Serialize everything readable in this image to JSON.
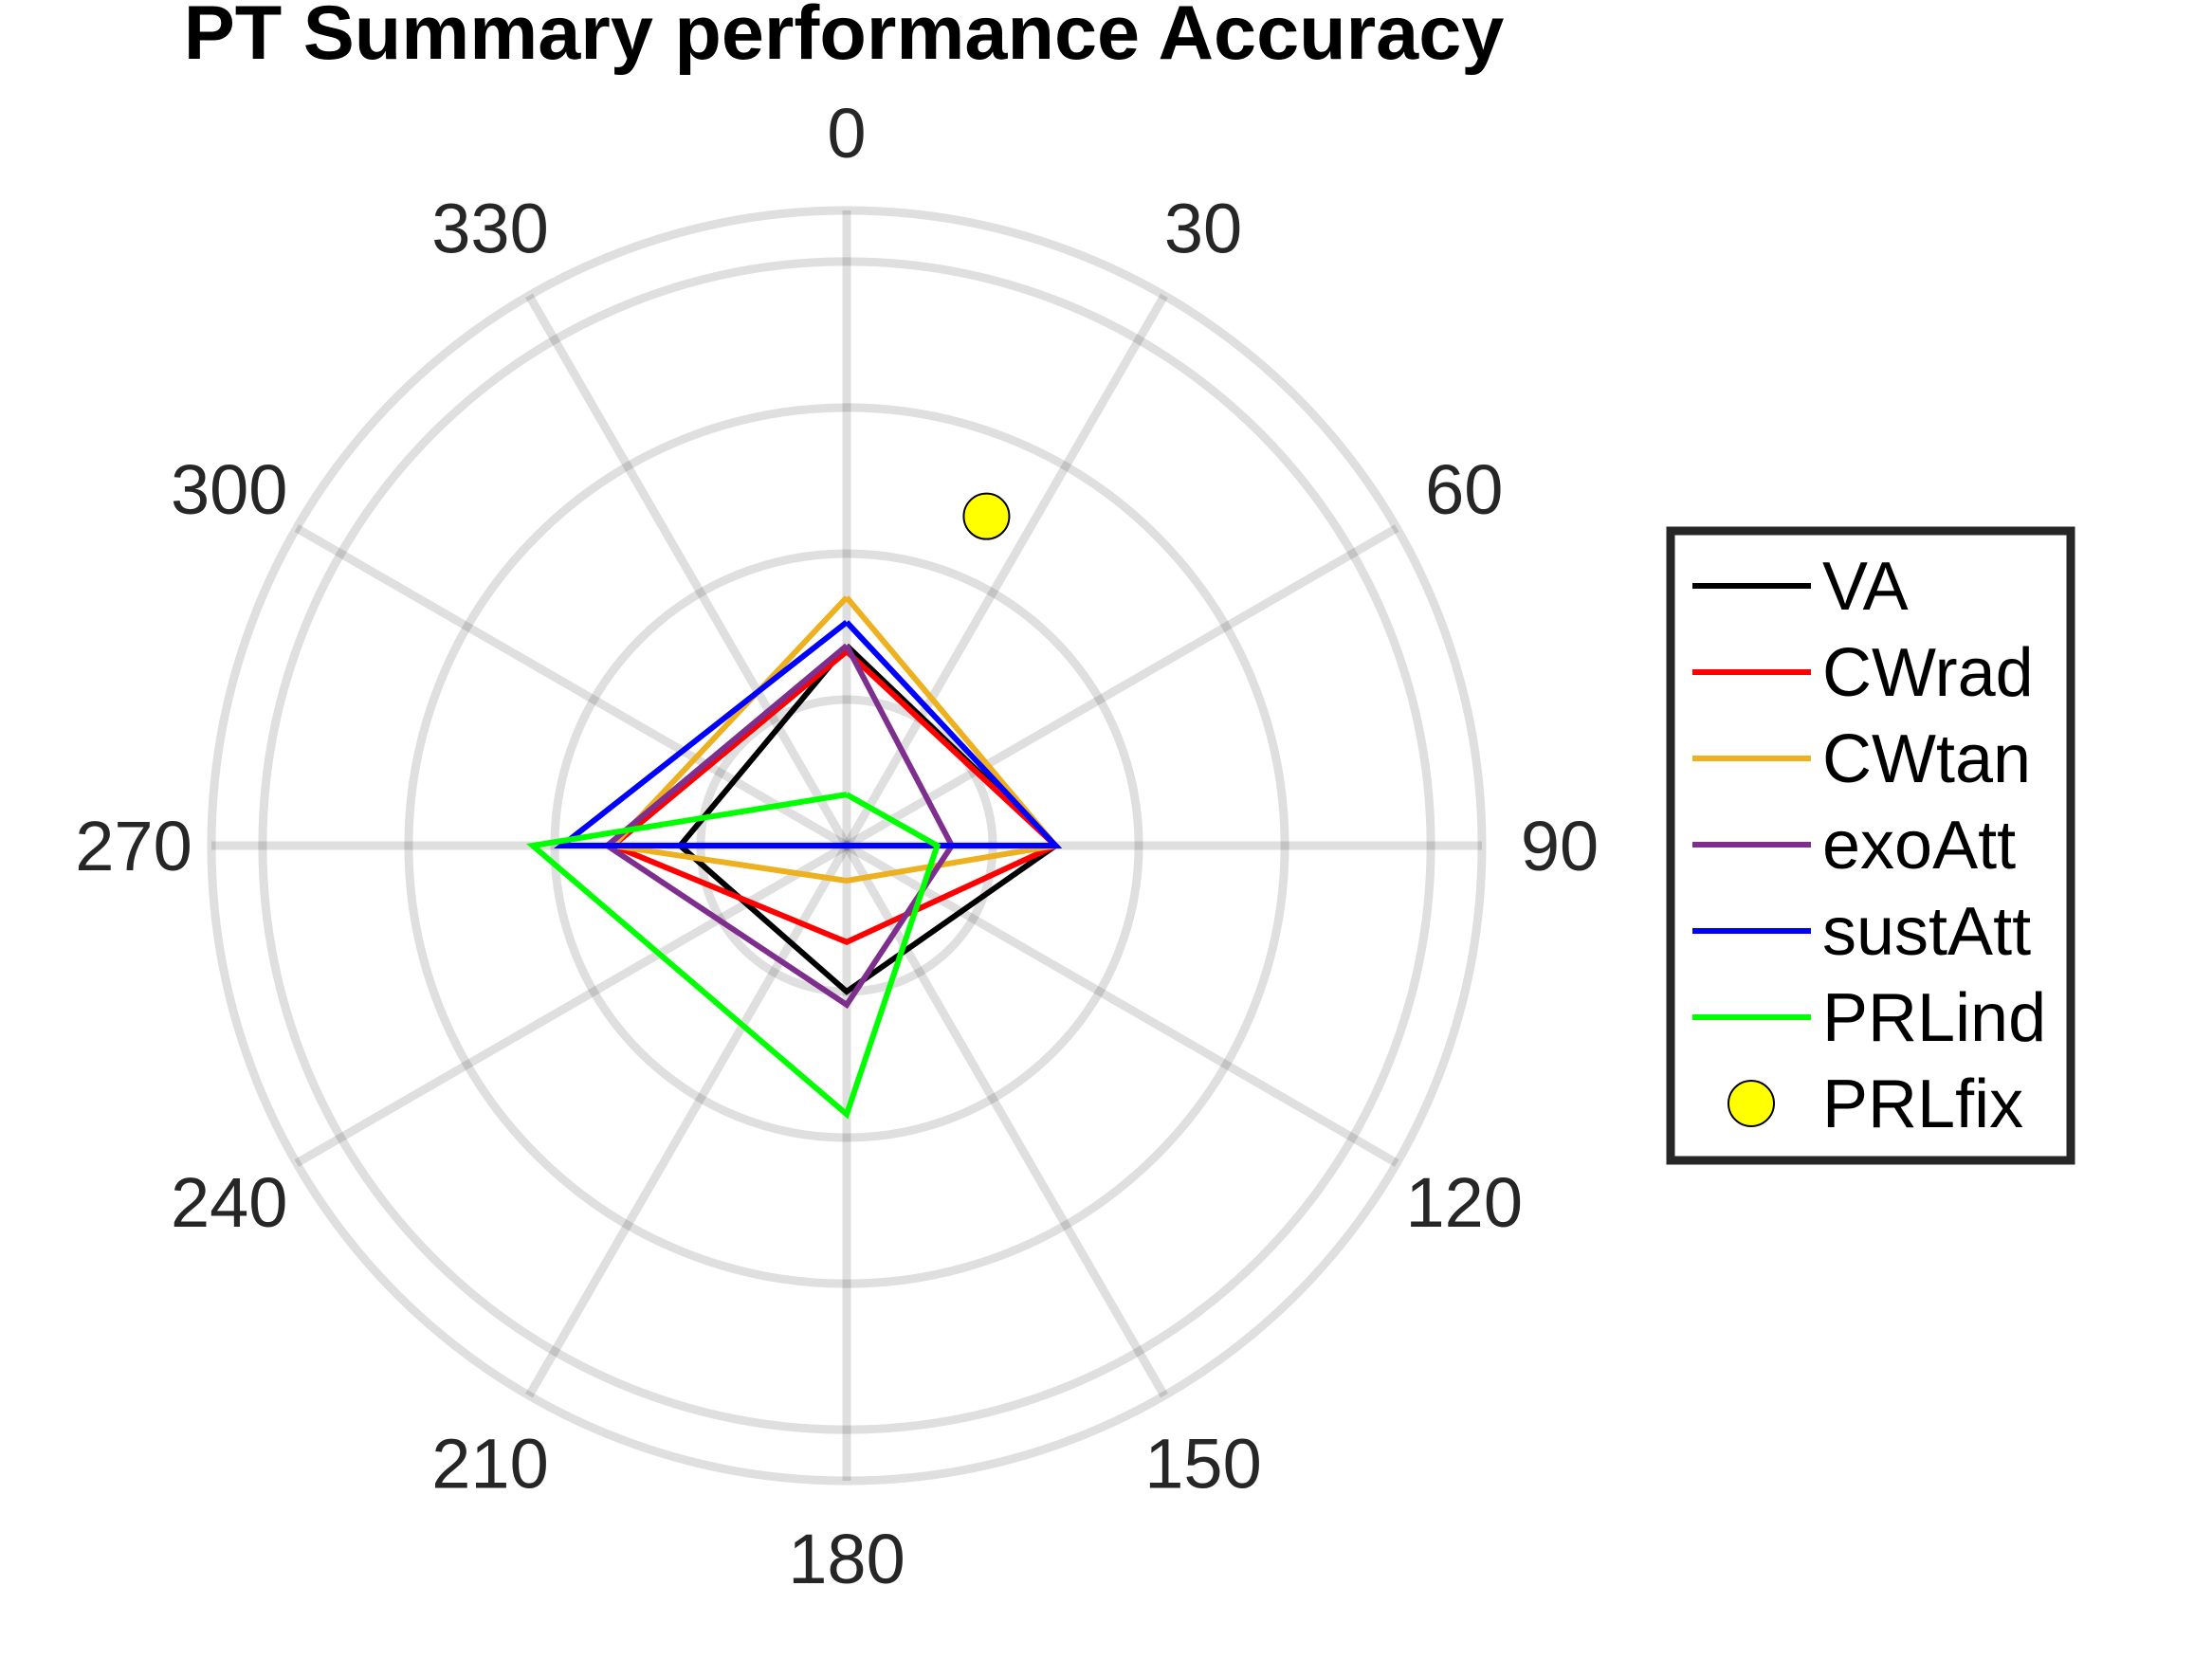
{
  "chart_data": {
    "type": "polar-line",
    "title": "PT Summary performance Accuracy",
    "theta_zero": "top",
    "theta_direction": "clockwise",
    "theta_ticks": [
      "0",
      "30",
      "60",
      "90",
      "120",
      "150",
      "180",
      "210",
      "240",
      "270",
      "300",
      "330"
    ],
    "theta_tick_values": [
      0,
      30,
      60,
      90,
      120,
      150,
      180,
      210,
      240,
      270,
      300,
      330
    ],
    "r_rings": [
      1,
      2,
      3,
      4
    ],
    "rlim": [
      0,
      4.35
    ],
    "grid": true,
    "legend_position": "right",
    "series": [
      {
        "name": "VA",
        "color": "#000000",
        "theta": [
          0,
          90,
          180,
          270
        ],
        "r": [
          1.37,
          1.43,
          1.0,
          1.14
        ]
      },
      {
        "name": "CWrad",
        "color": "#ff0000",
        "theta": [
          0,
          90,
          180,
          270
        ],
        "r": [
          1.33,
          1.43,
          0.66,
          1.6
        ]
      },
      {
        "name": "CWtan",
        "color": "#edb120",
        "theta": [
          0,
          90,
          180,
          270
        ],
        "r": [
          1.7,
          1.43,
          0.24,
          1.6
        ]
      },
      {
        "name": "exoAtt",
        "color": "#7e2f8e",
        "theta": [
          0,
          90,
          180,
          270
        ],
        "r": [
          1.37,
          0.72,
          1.09,
          1.64
        ]
      },
      {
        "name": "sustAtt",
        "color": "#0000ff",
        "theta": [
          0,
          90,
          180,
          270
        ],
        "r": [
          1.53,
          1.43,
          0.0,
          1.95
        ]
      },
      {
        "name": "PRLind",
        "color": "#00ff00",
        "theta": [
          0,
          90,
          180,
          270
        ],
        "r": [
          0.35,
          0.62,
          1.84,
          2.15
        ]
      }
    ],
    "points": [
      {
        "name": "PRLfix",
        "color": "#ffff00",
        "theta": 23,
        "r": 2.45
      }
    ]
  }
}
